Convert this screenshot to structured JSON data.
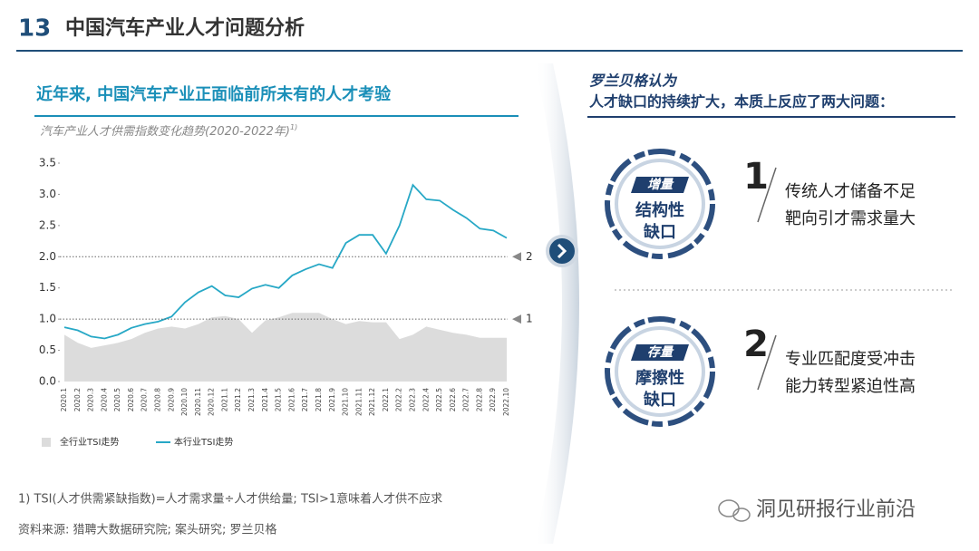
{
  "header": {
    "number": "13",
    "title": "中国汽车产业人才问题分析"
  },
  "left": {
    "heading": "近年来, 中国汽车产业正面临前所未有的人才考验"
  },
  "chart_data": {
    "type": "line",
    "title": "汽车产业人才供需指数变化趋势(2020-2022年)",
    "title_note": "1)",
    "categories": [
      "2020.1",
      "2020.2",
      "2020.3",
      "2020.4",
      "2020.5",
      "2020.6",
      "2020.7",
      "2020.8",
      "2020.9",
      "2020.10",
      "2020.11",
      "2020.12",
      "2021.1",
      "2021.2",
      "2021.3",
      "2021.4",
      "2021.5",
      "2021.6",
      "2021.7",
      "2021.8",
      "2021.9",
      "2021.10",
      "2021.11",
      "2021.12",
      "2022.1",
      "2022.2",
      "2022.3",
      "2022.4",
      "2022.5",
      "2022.6",
      "2022.7",
      "2022.8",
      "2022.9",
      "2022.10"
    ],
    "series": [
      {
        "name": "全行业TSI走势",
        "kind": "area",
        "color": "#dcdcdc",
        "values": [
          0.75,
          0.62,
          0.54,
          0.58,
          0.62,
          0.68,
          0.78,
          0.85,
          0.88,
          0.85,
          0.92,
          1.03,
          1.05,
          1.0,
          0.78,
          0.98,
          1.03,
          1.1,
          1.1,
          1.1,
          1.0,
          0.92,
          0.97,
          0.95,
          0.95,
          0.68,
          0.75,
          0.88,
          0.83,
          0.78,
          0.75,
          0.7,
          0.7,
          0.7
        ]
      },
      {
        "name": "本行业TSI走势",
        "kind": "line",
        "color": "#27a8c6",
        "values": [
          0.87,
          0.82,
          0.72,
          0.69,
          0.75,
          0.86,
          0.92,
          0.96,
          1.04,
          1.27,
          1.43,
          1.53,
          1.38,
          1.35,
          1.49,
          1.55,
          1.5,
          1.7,
          1.8,
          1.88,
          1.82,
          2.22,
          2.35,
          2.35,
          2.05,
          2.5,
          3.15,
          2.92,
          2.9,
          2.75,
          2.62,
          2.45,
          2.42,
          2.3
        ]
      }
    ],
    "ylim": [
      0,
      3.5
    ],
    "yticks": [
      {
        "value": 0,
        "label": "0.0"
      },
      {
        "value": 0.5,
        "label": "0.5"
      },
      {
        "value": 1,
        "label": "1.0"
      },
      {
        "value": 1.5,
        "label": "1.5"
      },
      {
        "value": 2,
        "label": "2.0"
      },
      {
        "value": 2.5,
        "label": "2.5"
      },
      {
        "value": 3,
        "label": "3.0"
      },
      {
        "value": 3.5,
        "label": "3.5"
      }
    ],
    "reference_lines": [
      2,
      1
    ],
    "grid": false,
    "legend": "bottom-left"
  },
  "right": {
    "intro": "罗兰贝格认为",
    "summary": "人才缺口的持续扩大，本质上反应了两大问题：",
    "items": [
      {
        "tag": "增量",
        "label": [
          "结构性",
          "缺口"
        ],
        "number": "1",
        "description": [
          "传统人才储备不足",
          "靶向引才需求量大"
        ]
      },
      {
        "tag": "存量",
        "label": [
          "摩擦性",
          "缺口"
        ],
        "number": "2",
        "description": [
          "专业匹配度受冲击",
          "能力转型紧迫性高"
        ]
      }
    ]
  },
  "footnotes": [
    "1) TSI(人才供需紧缺指数)=人才需求量÷人才供给量; TSI>1意味着人才供不应求",
    "资料来源: 猎聘大数据研究院; 案头研究; 罗兰贝格"
  ],
  "watermark": "洞见研报行业前沿"
}
